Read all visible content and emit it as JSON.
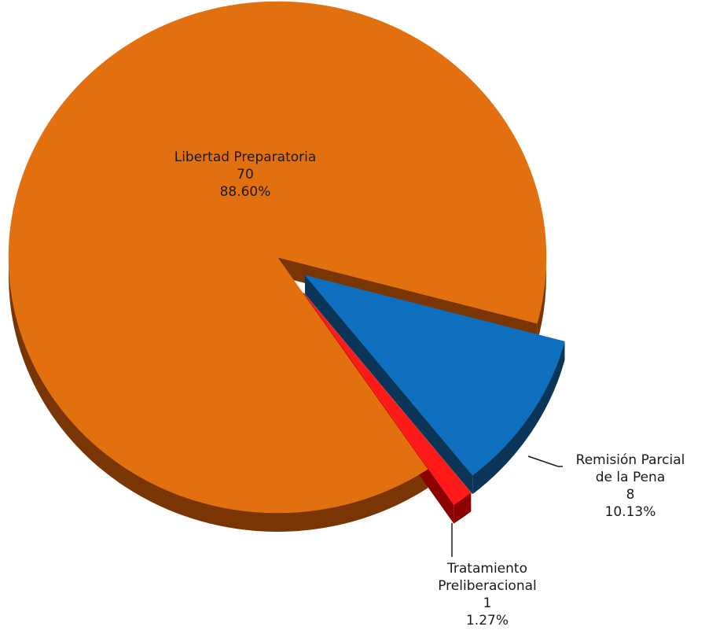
{
  "chart_data": {
    "type": "pie",
    "title": "",
    "slices": [
      {
        "label_lines": [
          "Libertad Preparatoria"
        ],
        "value": 70,
        "value_text": "70",
        "percent": 88.6,
        "percent_text": "88.60%",
        "color": "#E2700F",
        "side_color": "#7A3505"
      },
      {
        "label_lines": [
          "Remisión Parcial",
          "de la Pena"
        ],
        "value": 8,
        "value_text": "8",
        "percent": 10.13,
        "percent_text": "10.13%",
        "color": "#0E6FBF",
        "side_color": "#0B3557"
      },
      {
        "label_lines": [
          "Tratamiento",
          "Preliberacional"
        ],
        "value": 1,
        "value_text": "1",
        "percent": 1.27,
        "percent_text": "1.27%",
        "color": "#FF1A1A",
        "side_color": "#8B0000"
      }
    ],
    "exploded": true,
    "style": "3d"
  }
}
